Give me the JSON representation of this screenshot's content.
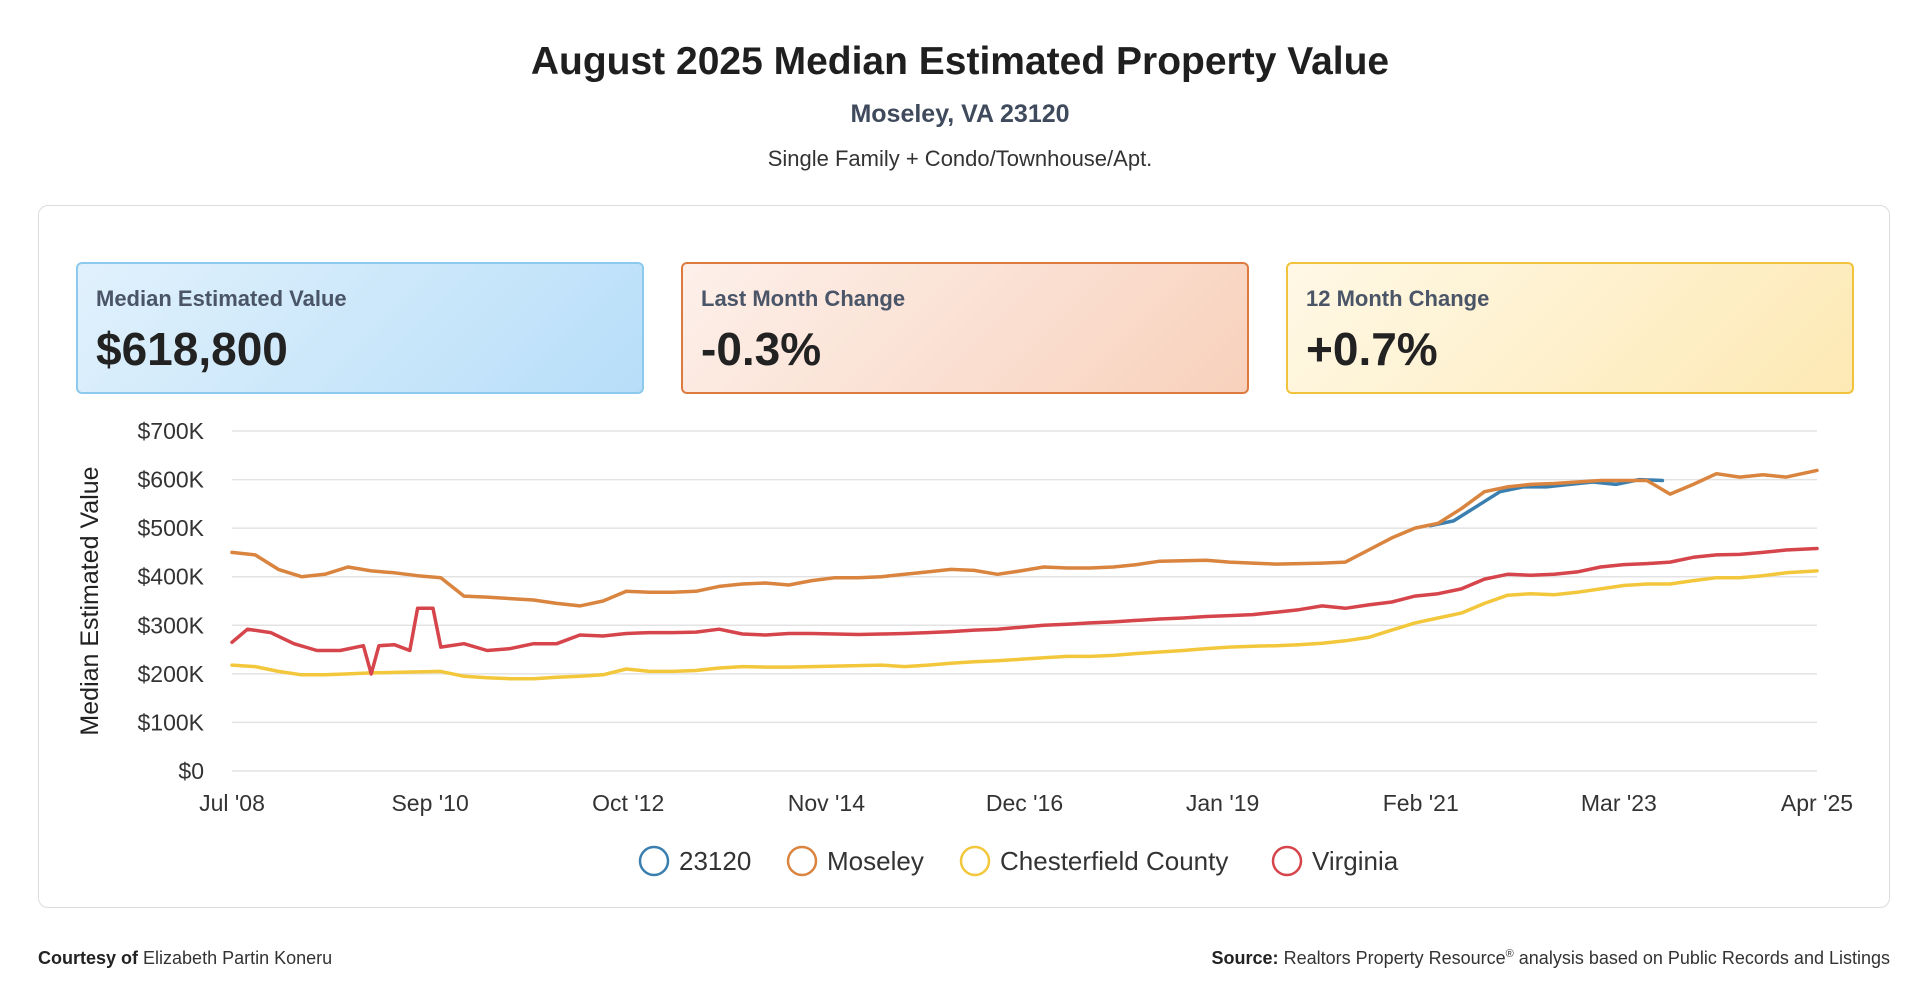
{
  "header": {
    "title": "August 2025 Median Estimated Property Value",
    "subtitle": "Moseley, VA 23120",
    "property_types": "Single Family + Condo/Townhouse/Apt."
  },
  "cards": [
    {
      "label": "Median Estimated Value",
      "value": "$618,800"
    },
    {
      "label": "Last Month Change",
      "value": "-0.3%"
    },
    {
      "label": "12 Month Change",
      "value": "+0.7%"
    }
  ],
  "footer": {
    "courtesy_label": "Courtesy of",
    "courtesy_name": "Elizabeth Partin Koneru",
    "source_label": "Source:",
    "source_text_1": "Realtors Property Resource",
    "source_reg": "®",
    "source_text_2": " analysis based on Public Records and Listings"
  },
  "colors": {
    "23120": "#3b7fb0",
    "Moseley": "#d9843f",
    "Chesterfield County": "#f3c73c",
    "Virginia": "#d6454b"
  },
  "chart_data": {
    "type": "line",
    "title": "",
    "xlabel": "",
    "ylabel": "Median Estimated Value",
    "ylim": [
      0,
      700000
    ],
    "y_ticks": [
      "$0",
      "$100K",
      "$200K",
      "$300K",
      "$400K",
      "$500K",
      "$600K",
      "$700K"
    ],
    "x_ticks": [
      "Jul '08",
      "Sep '10",
      "Oct '12",
      "Nov '14",
      "Dec '16",
      "Jan '19",
      "Feb '21",
      "Mar '23",
      "Apr '25"
    ],
    "x_range": [
      "2008-07",
      "2025-08"
    ],
    "grid": true,
    "legend_position": "bottom",
    "series": [
      {
        "name": "23120",
        "x": [
          "2021-06",
          "2021-09",
          "2021-12",
          "2022-03",
          "2022-06",
          "2022-09",
          "2022-12",
          "2023-03",
          "2023-06",
          "2023-09",
          "2023-12"
        ],
        "y": [
          505000,
          515000,
          545000,
          575000,
          585000,
          585000,
          590000,
          595000,
          590000,
          600000,
          598000
        ]
      },
      {
        "name": "Moseley",
        "x": [
          "2008-07",
          "2008-10",
          "2009-01",
          "2009-04",
          "2009-07",
          "2009-10",
          "2010-01",
          "2010-04",
          "2010-07",
          "2010-10",
          "2011-01",
          "2011-04",
          "2011-07",
          "2011-10",
          "2012-01",
          "2012-04",
          "2012-07",
          "2012-10",
          "2013-01",
          "2013-04",
          "2013-07",
          "2013-10",
          "2014-01",
          "2014-04",
          "2014-07",
          "2014-10",
          "2015-01",
          "2015-04",
          "2015-07",
          "2015-10",
          "2016-01",
          "2016-04",
          "2016-07",
          "2016-10",
          "2017-01",
          "2017-04",
          "2017-07",
          "2017-10",
          "2018-01",
          "2018-04",
          "2018-07",
          "2018-10",
          "2019-01",
          "2019-04",
          "2019-07",
          "2019-10",
          "2020-01",
          "2020-04",
          "2020-07",
          "2020-10",
          "2021-01",
          "2021-04",
          "2021-07",
          "2021-10",
          "2022-01",
          "2022-04",
          "2022-07",
          "2022-10",
          "2023-01",
          "2023-04",
          "2023-07",
          "2023-10",
          "2024-01",
          "2024-04",
          "2024-07",
          "2024-10",
          "2025-01",
          "2025-04",
          "2025-08"
        ],
        "y": [
          450000,
          445000,
          415000,
          400000,
          405000,
          420000,
          412000,
          408000,
          402000,
          398000,
          360000,
          358000,
          355000,
          352000,
          345000,
          340000,
          350000,
          370000,
          368000,
          368000,
          370000,
          380000,
          385000,
          387000,
          383000,
          392000,
          398000,
          398000,
          400000,
          405000,
          410000,
          415000,
          413000,
          405000,
          412000,
          420000,
          418000,
          418000,
          420000,
          425000,
          432000,
          433000,
          434000,
          430000,
          428000,
          426000,
          427000,
          428000,
          430000,
          455000,
          480000,
          500000,
          510000,
          540000,
          575000,
          585000,
          590000,
          592000,
          595000,
          598000,
          598000,
          598000,
          570000,
          590000,
          612000,
          605000,
          610000,
          605000,
          618800
        ]
      },
      {
        "name": "Chesterfield County",
        "x": [
          "2008-07",
          "2008-10",
          "2009-01",
          "2009-04",
          "2009-07",
          "2009-10",
          "2010-01",
          "2010-04",
          "2010-07",
          "2010-10",
          "2011-01",
          "2011-04",
          "2011-07",
          "2011-10",
          "2012-01",
          "2012-04",
          "2012-07",
          "2012-10",
          "2013-01",
          "2013-04",
          "2013-07",
          "2013-10",
          "2014-01",
          "2014-04",
          "2014-07",
          "2014-10",
          "2015-01",
          "2015-04",
          "2015-07",
          "2015-10",
          "2016-01",
          "2016-04",
          "2016-07",
          "2016-10",
          "2017-01",
          "2017-04",
          "2017-07",
          "2017-10",
          "2018-01",
          "2018-04",
          "2018-07",
          "2018-10",
          "2019-01",
          "2019-04",
          "2019-07",
          "2019-10",
          "2020-01",
          "2020-04",
          "2020-07",
          "2020-10",
          "2021-01",
          "2021-04",
          "2021-07",
          "2021-10",
          "2022-01",
          "2022-04",
          "2022-07",
          "2022-10",
          "2023-01",
          "2023-04",
          "2023-07",
          "2023-10",
          "2024-01",
          "2024-04",
          "2024-07",
          "2024-10",
          "2025-01",
          "2025-04",
          "2025-08"
        ],
        "y": [
          218000,
          215000,
          205000,
          198000,
          198000,
          200000,
          202000,
          203000,
          204000,
          205000,
          195000,
          192000,
          190000,
          190000,
          193000,
          195000,
          198000,
          210000,
          205000,
          205000,
          207000,
          212000,
          215000,
          214000,
          214000,
          215000,
          216000,
          217000,
          218000,
          215000,
          218000,
          222000,
          225000,
          227000,
          230000,
          233000,
          236000,
          236000,
          238000,
          242000,
          245000,
          248000,
          252000,
          255000,
          257000,
          258000,
          260000,
          263000,
          268000,
          275000,
          290000,
          305000,
          315000,
          325000,
          345000,
          362000,
          365000,
          363000,
          368000,
          375000,
          382000,
          385000,
          385000,
          392000,
          398000,
          398000,
          402000,
          408000,
          412000
        ]
      },
      {
        "name": "Virginia",
        "x": [
          "2008-07",
          "2008-09",
          "2008-12",
          "2009-03",
          "2009-06",
          "2009-09",
          "2009-12",
          "2010-01",
          "2010-02",
          "2010-04",
          "2010-06",
          "2010-07",
          "2010-09",
          "2010-10",
          "2011-01",
          "2011-04",
          "2011-07",
          "2011-10",
          "2012-01",
          "2012-04",
          "2012-07",
          "2012-10",
          "2013-01",
          "2013-04",
          "2013-07",
          "2013-10",
          "2014-01",
          "2014-04",
          "2014-07",
          "2014-10",
          "2015-01",
          "2015-04",
          "2015-07",
          "2015-10",
          "2016-01",
          "2016-04",
          "2016-07",
          "2016-10",
          "2017-01",
          "2017-04",
          "2017-07",
          "2017-10",
          "2018-01",
          "2018-04",
          "2018-07",
          "2018-10",
          "2019-01",
          "2019-04",
          "2019-07",
          "2019-10",
          "2020-01",
          "2020-04",
          "2020-07",
          "2020-10",
          "2021-01",
          "2021-04",
          "2021-07",
          "2021-10",
          "2022-01",
          "2022-04",
          "2022-07",
          "2022-10",
          "2023-01",
          "2023-04",
          "2023-07",
          "2023-10",
          "2024-01",
          "2024-04",
          "2024-07",
          "2024-10",
          "2025-01",
          "2025-04",
          "2025-08"
        ],
        "y": [
          265000,
          292000,
          285000,
          262000,
          248000,
          248000,
          258000,
          200000,
          258000,
          260000,
          248000,
          335000,
          335000,
          255000,
          262000,
          248000,
          252000,
          262000,
          262000,
          280000,
          278000,
          283000,
          285000,
          285000,
          286000,
          292000,
          282000,
          280000,
          283000,
          283000,
          282000,
          281000,
          282000,
          283000,
          285000,
          287000,
          290000,
          292000,
          296000,
          300000,
          302000,
          305000,
          307000,
          310000,
          313000,
          315000,
          318000,
          320000,
          322000,
          327000,
          332000,
          340000,
          335000,
          342000,
          348000,
          360000,
          365000,
          375000,
          395000,
          405000,
          403000,
          405000,
          410000,
          420000,
          425000,
          427000,
          430000,
          440000,
          445000,
          446000,
          450000,
          455000,
          458000
        ]
      }
    ]
  }
}
